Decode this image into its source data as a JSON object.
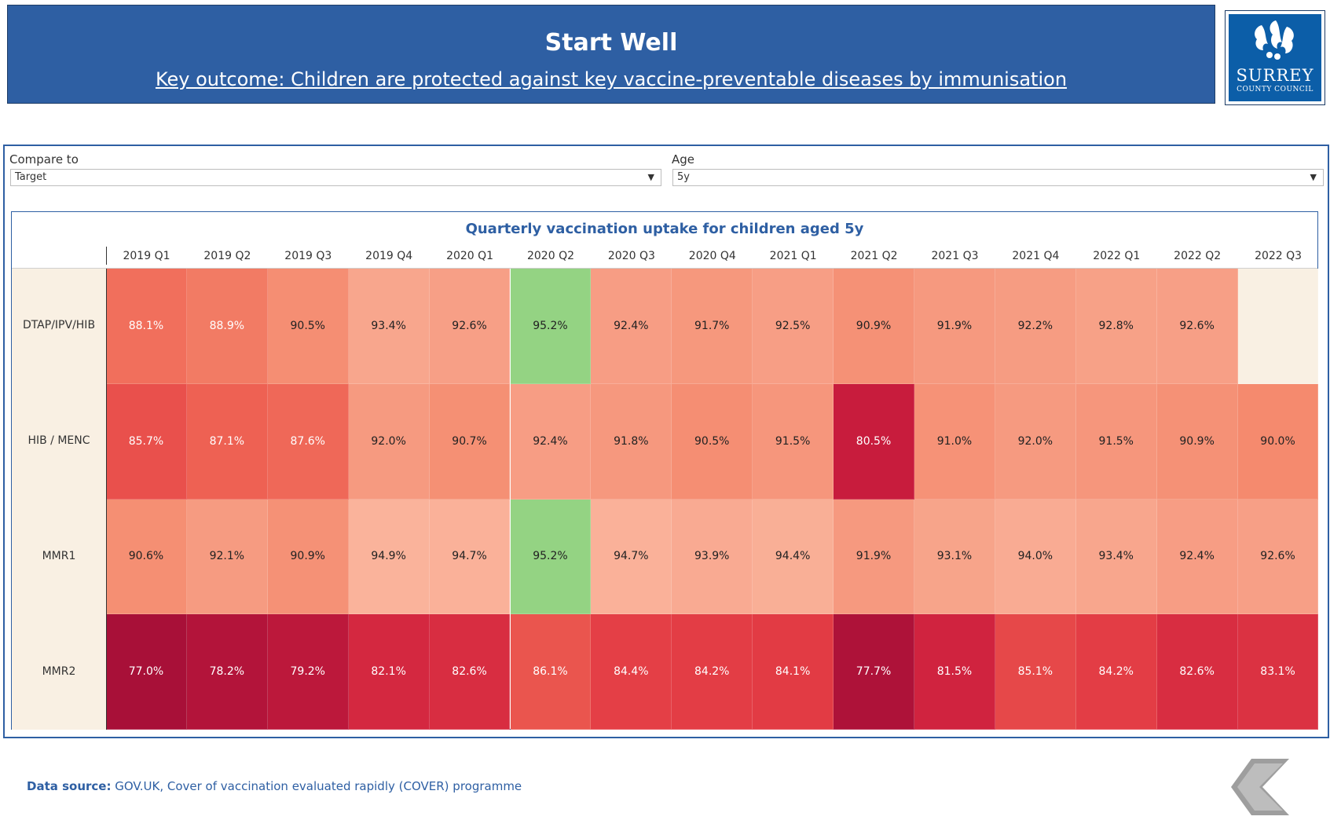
{
  "header": {
    "title": "Start Well",
    "subtitle": "Key outcome: Children are protected against key vaccine-preventable diseases by immunisation"
  },
  "logo": {
    "line1": "SURREY",
    "line2": "COUNTY COUNCIL",
    "icon": "surrey-oak-leaves-logo"
  },
  "filters": {
    "compare_label": "Compare to",
    "compare_value": "Target",
    "age_label": "Age",
    "age_value": "5y"
  },
  "chart_data": {
    "type": "heatmap",
    "title": "Quarterly vaccination uptake for children aged 5y",
    "columns": [
      "2019 Q1",
      "2019 Q2",
      "2019 Q3",
      "2019 Q4",
      "2020 Q1",
      "2020 Q2",
      "2020 Q3",
      "2020 Q4",
      "2021 Q1",
      "2021 Q2",
      "2021 Q3",
      "2021 Q4",
      "2022 Q1",
      "2022 Q2",
      "2022 Q3"
    ],
    "rows": [
      {
        "label": "DTAP/IPV/HIB",
        "values": [
          88.1,
          88.9,
          90.5,
          93.4,
          92.6,
          95.2,
          92.4,
          91.7,
          92.5,
          90.9,
          91.9,
          92.2,
          92.8,
          92.6,
          null
        ],
        "display": [
          "88.1%",
          "88.9%",
          "90.5%",
          "93.4%",
          "92.6%",
          "95.2%",
          "92.4%",
          "91.7%",
          "92.5%",
          "90.9%",
          "91.9%",
          "92.2%",
          "92.8%",
          "92.6%",
          ""
        ]
      },
      {
        "label": "HIB / MENC",
        "values": [
          85.7,
          87.1,
          87.6,
          92.0,
          90.7,
          92.4,
          91.8,
          90.5,
          91.5,
          80.5,
          91.0,
          92.0,
          91.5,
          90.9,
          90.0
        ],
        "display": [
          "85.7%",
          "87.1%",
          "87.6%",
          "92.0%",
          "90.7%",
          "92.4%",
          "91.8%",
          "90.5%",
          "91.5%",
          "80.5%",
          "91.0%",
          "92.0%",
          "91.5%",
          "90.9%",
          "90.0%"
        ]
      },
      {
        "label": "MMR1",
        "values": [
          90.6,
          92.1,
          90.9,
          94.9,
          94.7,
          95.2,
          94.7,
          93.9,
          94.4,
          91.9,
          93.1,
          94.0,
          93.4,
          92.4,
          92.6
        ],
        "display": [
          "90.6%",
          "92.1%",
          "90.9%",
          "94.9%",
          "94.7%",
          "95.2%",
          "94.7%",
          "93.9%",
          "94.4%",
          "91.9%",
          "93.1%",
          "94.0%",
          "93.4%",
          "92.4%",
          "92.6%"
        ]
      },
      {
        "label": "MMR2",
        "values": [
          77.0,
          78.2,
          79.2,
          82.1,
          82.6,
          86.1,
          84.4,
          84.2,
          84.1,
          77.7,
          81.5,
          85.1,
          84.2,
          82.6,
          83.1
        ],
        "display": [
          "77.0%",
          "78.2%",
          "79.2%",
          "82.1%",
          "82.6%",
          "86.1%",
          "84.4%",
          "84.2%",
          "84.1%",
          "77.7%",
          "81.5%",
          "85.1%",
          "84.2%",
          "82.6%",
          "83.1%"
        ]
      }
    ],
    "target": 95,
    "colors": {
      "meets_target": "#94d383",
      "empty": "#f9f0e3"
    }
  },
  "footer": {
    "source_label": "Data source:",
    "source_text": " GOV.UK, Cover of vaccination evaluated rapidly (COVER) programme"
  },
  "nav": {
    "back_icon": "back-chevron-icon"
  }
}
